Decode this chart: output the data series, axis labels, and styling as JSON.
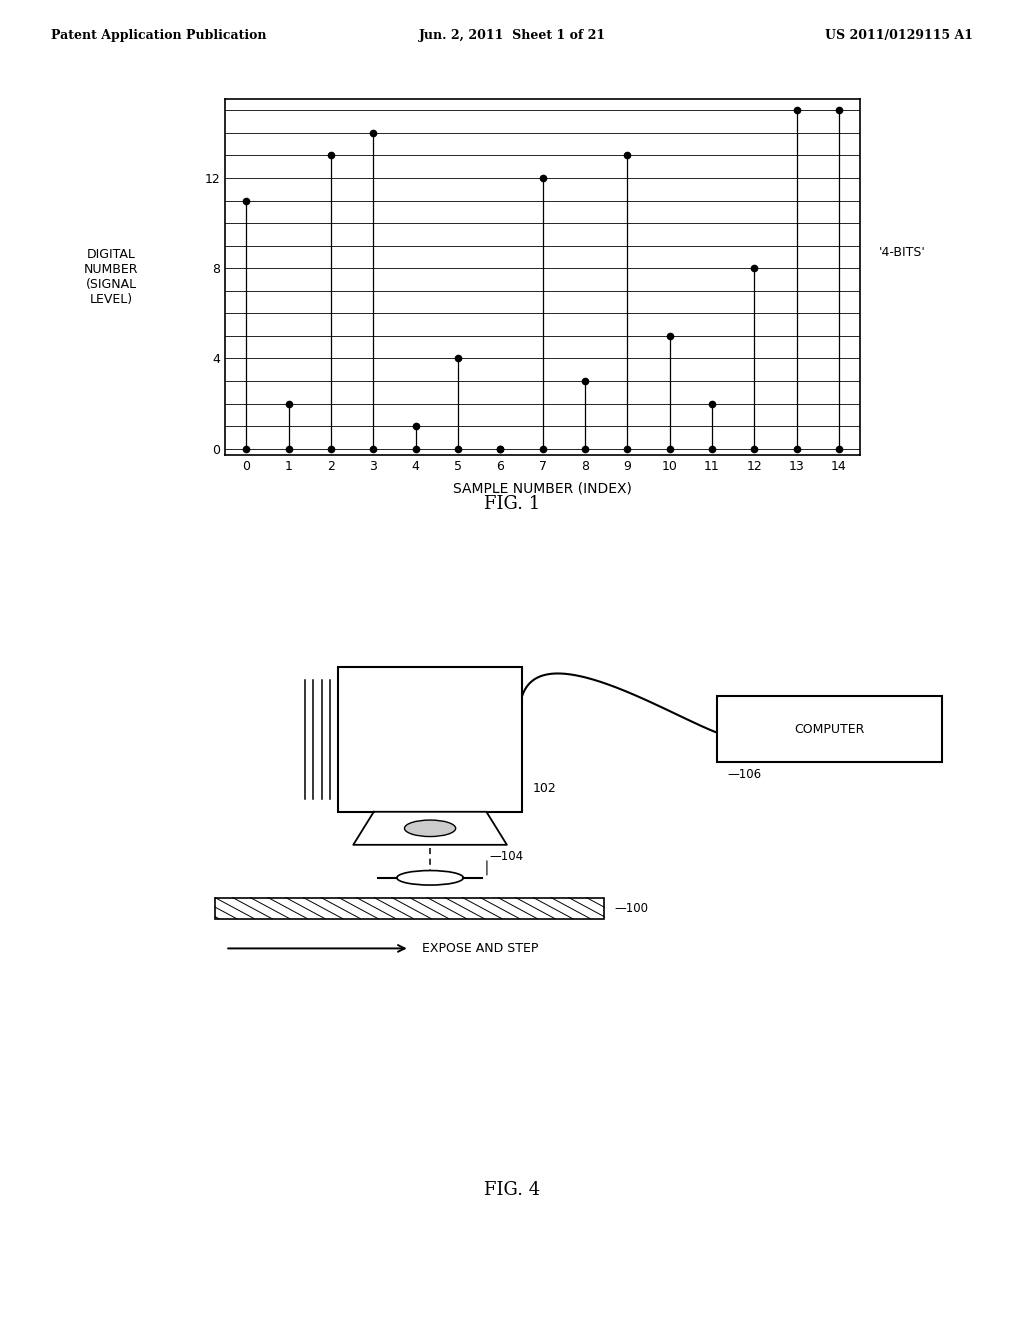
{
  "header_left": "Patent Application Publication",
  "header_center": "Jun. 2, 2011  Sheet 1 of 21",
  "header_right": "US 2011/0129115 A1",
  "fig1_title": "FIG. 1",
  "fig4_title": "FIG. 4",
  "sample_indices": [
    0,
    1,
    2,
    3,
    4,
    5,
    6,
    7,
    8,
    9,
    10,
    11,
    12,
    13,
    14
  ],
  "sample_values": [
    11,
    2,
    13,
    14,
    1,
    4,
    0,
    12,
    3,
    13,
    5,
    2,
    8,
    15,
    15
  ],
  "ylabel_line1": "DIGITAL",
  "ylabel_line2": "NUMBER",
  "ylabel_line3": "(SIGNAL",
  "ylabel_line4": "LEVEL)",
  "xlabel": "SAMPLE NUMBER (INDEX)",
  "annotation": "'4-BITS'",
  "yticks": [
    0,
    4,
    8,
    12
  ],
  "ylim": [
    -0.3,
    15.5
  ],
  "xlim": [
    -0.5,
    14.5
  ],
  "background_color": "#ffffff",
  "line_color": "#000000",
  "label_102": "102",
  "label_104": "104",
  "label_100": "100",
  "label_106": "106",
  "expose_text": "EXPOSE AND STEP",
  "computer_text": "COMPUTER"
}
